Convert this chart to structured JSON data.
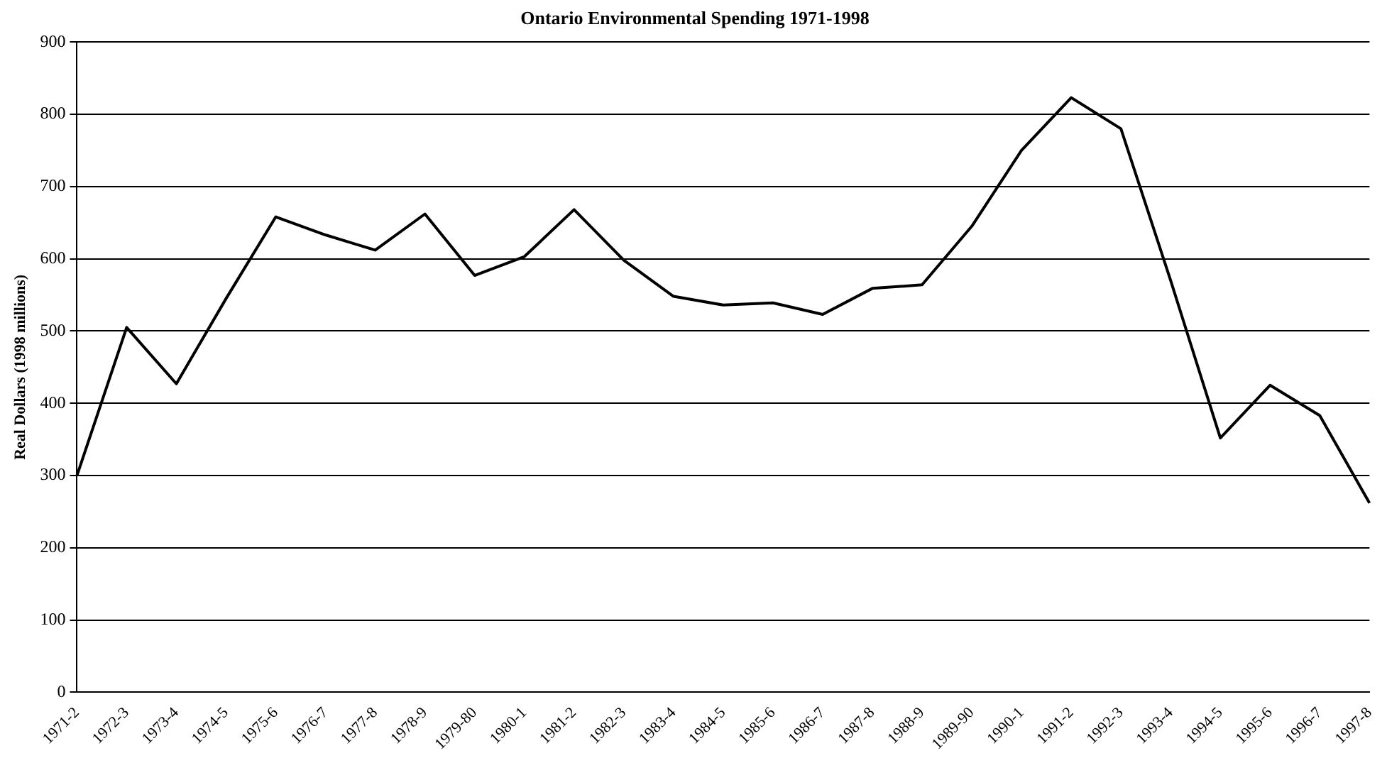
{
  "chart_data": {
    "type": "line",
    "title": "Ontario Environmental Spending 1971-1998",
    "ylabel": "Real Dollars (1998 millions)",
    "categories": [
      "1971-2",
      "1972-3",
      "1973-4",
      "1974-5",
      "1975-6",
      "1976-7",
      "1977-8",
      "1978-9",
      "1979-80",
      "1980-1",
      "1981-2",
      "1982-3",
      "1983-4",
      "1984-5",
      "1985-6",
      "1986-7",
      "1987-8",
      "1988-9",
      "1989-90",
      "1990-1",
      "1991-2",
      "1992-3",
      "1993-4",
      "1994-5",
      "1995-6",
      "1996-7",
      "1997-8"
    ],
    "series": [
      {
        "color": "#000000",
        "values": [
          300,
          505,
          427,
          545,
          658,
          633,
          612,
          662,
          577,
          603,
          668,
          598,
          548,
          536,
          539,
          523,
          559,
          564,
          645,
          750,
          823,
          780,
          570,
          352,
          425,
          383,
          262
        ]
      }
    ],
    "ylim": [
      0,
      900
    ],
    "yticks": [
      0,
      100,
      200,
      300,
      400,
      500,
      600,
      700,
      800,
      900
    ],
    "grid": "y",
    "legend": false,
    "marker": "none",
    "line_style": "solid"
  }
}
